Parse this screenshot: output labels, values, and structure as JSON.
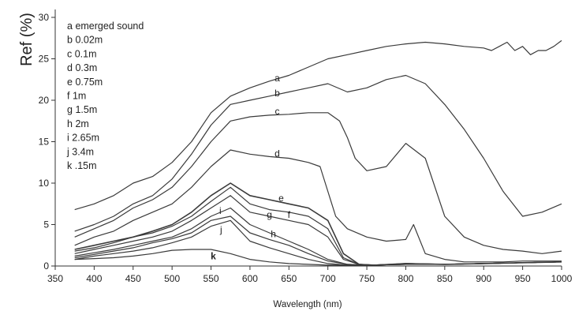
{
  "chart_data": {
    "type": "line",
    "xlabel": "Wavelength (nm)",
    "ylabel": "Ref (%)",
    "xlim": [
      350,
      1000
    ],
    "ylim": [
      0,
      30
    ],
    "xticks": [
      350,
      400,
      450,
      500,
      550,
      600,
      650,
      700,
      750,
      800,
      850,
      900,
      950,
      1000
    ],
    "yticks": [
      0,
      5,
      10,
      15,
      20,
      25,
      30
    ],
    "grid": false,
    "legend_position": "top-left",
    "line_color": "#3a3a3a",
    "legend": [
      {
        "key": "a",
        "label": "emerged sound"
      },
      {
        "key": "b",
        "label": "0.02m"
      },
      {
        "key": "c",
        "label": "0.1m"
      },
      {
        "key": "d",
        "label": "0.3m"
      },
      {
        "key": "e",
        "label": "0.75m"
      },
      {
        "key": "f",
        "label": "1m"
      },
      {
        "key": "g",
        "label": "1.5m"
      },
      {
        "key": "h",
        "label": "2m"
      },
      {
        "key": "i",
        "label": "2.65m"
      },
      {
        "key": "j",
        "label": "3.4m"
      },
      {
        "key": "k",
        "label": ".15m"
      }
    ],
    "series": [
      {
        "key": "a",
        "label_at": [
          635,
          22.3
        ],
        "x": [
          375,
          400,
          425,
          450,
          475,
          500,
          525,
          550,
          575,
          600,
          625,
          650,
          675,
          700,
          725,
          750,
          775,
          800,
          825,
          850,
          875,
          900,
          910,
          920,
          930,
          940,
          950,
          960,
          970,
          980,
          990,
          1000
        ],
        "y": [
          6.8,
          7.5,
          8.5,
          10.0,
          10.8,
          12.5,
          15.0,
          18.5,
          20.5,
          21.5,
          22.3,
          23.0,
          24.0,
          25.0,
          25.5,
          26.0,
          26.5,
          26.8,
          27.0,
          26.8,
          26.5,
          26.3,
          26.0,
          26.5,
          27.0,
          26.0,
          26.5,
          25.5,
          26.0,
          26.0,
          26.5,
          27.2
        ]
      },
      {
        "key": "b",
        "label_at": [
          635,
          20.5
        ],
        "x": [
          375,
          400,
          425,
          450,
          475,
          500,
          525,
          550,
          575,
          600,
          625,
          650,
          675,
          700,
          725,
          750,
          775,
          800,
          825,
          850,
          875,
          900,
          925,
          950,
          975,
          1000
        ],
        "y": [
          4.2,
          5.0,
          6.0,
          7.5,
          8.5,
          10.5,
          13.5,
          17.0,
          19.5,
          20.0,
          20.5,
          21.0,
          21.5,
          22.0,
          21.0,
          21.5,
          22.5,
          23.0,
          22.0,
          19.5,
          16.5,
          13.0,
          9.0,
          6.0,
          6.5,
          7.5
        ]
      },
      {
        "key": "c",
        "label_at": [
          635,
          18.3
        ],
        "x": [
          375,
          400,
          425,
          450,
          475,
          500,
          525,
          550,
          575,
          600,
          625,
          650,
          675,
          700,
          715,
          725,
          735,
          750,
          775,
          800,
          825,
          850,
          875,
          900,
          925,
          950,
          975,
          1000
        ],
        "y": [
          3.5,
          4.5,
          5.5,
          7.0,
          8.0,
          9.5,
          12.0,
          15.0,
          17.5,
          18.0,
          18.2,
          18.3,
          18.5,
          18.5,
          17.5,
          15.5,
          13.0,
          11.5,
          12.0,
          14.8,
          13.0,
          6.0,
          3.5,
          2.5,
          2.0,
          1.8,
          1.5,
          1.8
        ]
      },
      {
        "key": "d",
        "label_at": [
          635,
          13.2
        ],
        "x": [
          375,
          400,
          425,
          450,
          475,
          500,
          525,
          550,
          575,
          600,
          625,
          650,
          675,
          690,
          700,
          710,
          725,
          750,
          775,
          800,
          810,
          825,
          850,
          875,
          900,
          925,
          950,
          975,
          1000
        ],
        "y": [
          2.5,
          3.5,
          4.2,
          5.5,
          6.5,
          7.5,
          9.5,
          12.0,
          14.0,
          13.5,
          13.2,
          13.0,
          12.5,
          12.0,
          9.0,
          6.0,
          4.5,
          3.5,
          3.0,
          3.2,
          5.0,
          1.5,
          0.8,
          0.5,
          0.5,
          0.5,
          0.6,
          0.6,
          0.6
        ]
      },
      {
        "key": "e",
        "label_at": [
          640,
          7.8
        ],
        "x": [
          375,
          400,
          425,
          450,
          475,
          500,
          525,
          550,
          575,
          600,
          625,
          650,
          675,
          700,
          720,
          740,
          760,
          800,
          850,
          900,
          950,
          1000
        ],
        "y": [
          2.0,
          2.5,
          3.0,
          3.5,
          4.2,
          5.0,
          6.5,
          8.5,
          10.0,
          8.5,
          8.0,
          7.5,
          7.0,
          5.5,
          1.5,
          0.2,
          0.1,
          0.3,
          0.2,
          0.3,
          0.4,
          0.5
        ]
      },
      {
        "key": "f",
        "label_at": [
          650,
          5.8
        ],
        "x": [
          375,
          400,
          425,
          450,
          475,
          500,
          525,
          550,
          575,
          600,
          625,
          650,
          675,
          700,
          720,
          740,
          760,
          800,
          850,
          900,
          950,
          1000
        ],
        "y": [
          1.8,
          2.2,
          2.8,
          3.5,
          4.0,
          4.8,
          6.0,
          7.8,
          9.5,
          7.5,
          6.8,
          6.5,
          6.0,
          4.5,
          1.0,
          0.2,
          0.1,
          0.3,
          0.2,
          0.3,
          0.4,
          0.5
        ]
      },
      {
        "key": "g",
        "label_at": [
          625,
          5.8
        ],
        "x": [
          375,
          400,
          425,
          450,
          475,
          500,
          525,
          550,
          575,
          600,
          625,
          650,
          675,
          700,
          720,
          740,
          760,
          800,
          850,
          900,
          950,
          1000
        ],
        "y": [
          1.5,
          2.0,
          2.5,
          3.0,
          3.5,
          4.2,
          5.5,
          7.0,
          8.5,
          6.5,
          6.0,
          5.5,
          5.0,
          3.5,
          0.8,
          0.2,
          0.1,
          0.3,
          0.2,
          0.3,
          0.4,
          0.5
        ]
      },
      {
        "key": "h",
        "label_at": [
          630,
          3.5
        ],
        "x": [
          375,
          400,
          425,
          450,
          475,
          500,
          525,
          550,
          575,
          600,
          625,
          650,
          675,
          700,
          725,
          750,
          800,
          850,
          900,
          950,
          1000
        ],
        "y": [
          1.2,
          1.6,
          2.0,
          2.5,
          3.0,
          3.5,
          4.5,
          6.0,
          7.0,
          5.0,
          4.0,
          3.0,
          2.0,
          0.8,
          0.2,
          0.1,
          0.2,
          0.2,
          0.3,
          0.4,
          0.5
        ]
      },
      {
        "key": "i",
        "label_at": [
          562,
          6.3
        ],
        "x": [
          375,
          400,
          425,
          450,
          475,
          500,
          525,
          550,
          575,
          600,
          625,
          650,
          675,
          700,
          725,
          750,
          800,
          850,
          900,
          950,
          1000
        ],
        "y": [
          1.0,
          1.4,
          1.8,
          2.2,
          2.8,
          3.3,
          4.0,
          5.5,
          6.0,
          4.0,
          3.2,
          2.5,
          1.5,
          0.6,
          0.2,
          0.1,
          0.2,
          0.2,
          0.3,
          0.4,
          0.5
        ]
      },
      {
        "key": "j",
        "label_at": [
          563,
          4.0
        ],
        "x": [
          375,
          400,
          425,
          450,
          475,
          500,
          525,
          550,
          575,
          600,
          625,
          650,
          675,
          700,
          725,
          750,
          800,
          850,
          900,
          950,
          1000
        ],
        "y": [
          0.8,
          1.2,
          1.5,
          1.8,
          2.2,
          2.8,
          3.5,
          4.8,
          5.5,
          3.0,
          2.2,
          1.5,
          0.8,
          0.3,
          0.1,
          0.1,
          0.2,
          0.2,
          0.3,
          0.4,
          0.5
        ]
      },
      {
        "key": "k",
        "label_at": [
          553,
          0.8
        ],
        "x": [
          375,
          400,
          425,
          450,
          475,
          500,
          525,
          550,
          575,
          600,
          625,
          650,
          675,
          700,
          725,
          750,
          800,
          850,
          900,
          950,
          1000
        ],
        "y": [
          0.8,
          0.9,
          1.0,
          1.2,
          1.5,
          1.9,
          2.0,
          2.0,
          1.5,
          0.8,
          0.5,
          0.3,
          0.2,
          0.1,
          0.1,
          0.1,
          0.2,
          0.2,
          0.3,
          0.4,
          0.5
        ]
      }
    ]
  }
}
